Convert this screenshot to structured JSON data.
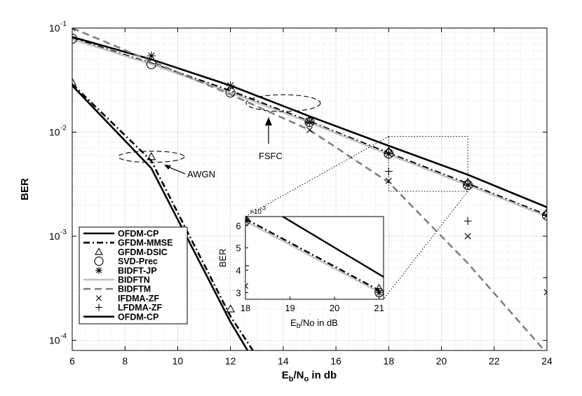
{
  "chart_data": [
    {
      "id": "main",
      "type": "line",
      "xlabel": "E_b/N_o in db",
      "ylabel": "BER",
      "xscale": "linear",
      "yscale": "log",
      "xlim": [
        6,
        24
      ],
      "ylim": [
        8e-05,
        0.1
      ],
      "grid": true,
      "minor_grid": true,
      "legend_position": "bottom-left",
      "x_ticks": [
        "6",
        "8",
        "10",
        "12",
        "14",
        "16",
        "18",
        "20",
        "22",
        "24"
      ],
      "y_ticks": [
        {
          "value": 0.1,
          "base": "10",
          "exp": "-1"
        },
        {
          "value": 0.01,
          "base": "10",
          "exp": "-2"
        },
        {
          "value": 0.001,
          "base": "10",
          "exp": "-3"
        },
        {
          "value": 0.0001,
          "base": "10",
          "exp": "-4"
        }
      ],
      "legend": [
        {
          "label": "OFDM-CP",
          "line": "solid",
          "marker": "none",
          "color": "#000000"
        },
        {
          "label": "GFDM-MMSE",
          "line": "dashdot",
          "marker": "none",
          "color": "#000000"
        },
        {
          "label": "GFDM-DSIC",
          "line": "none",
          "marker": "triangle",
          "color": "#000000"
        },
        {
          "label": "SVD-Prec",
          "line": "none",
          "marker": "circle",
          "color": "#000000"
        },
        {
          "label": "BIDFT-JP",
          "line": "none",
          "marker": "asterisk",
          "color": "#000000"
        },
        {
          "label": "BIDFTN",
          "line": "solid",
          "marker": "none",
          "color": "#c0c0c0"
        },
        {
          "label": "BIDFTM",
          "line": "dashed",
          "marker": "none",
          "color": "#808080"
        },
        {
          "label": "IFDMA-ZF",
          "line": "none",
          "marker": "x",
          "color": "#000000"
        },
        {
          "label": "LFDMA-ZF",
          "line": "none",
          "marker": "plus",
          "color": "#000000"
        },
        {
          "label": "OFDM-CP",
          "line": "solid",
          "marker": "none",
          "color": "#000000"
        }
      ],
      "series": [
        {
          "label": "OFDM-CP",
          "style": "solid",
          "color": "#000000",
          "width": 2.6,
          "x": [
            6,
            9,
            12,
            12.65
          ],
          "y": [
            0.028,
            0.0045,
            0.00015,
            8e-05
          ]
        },
        {
          "label": "GFDM-MMSE",
          "style": "dashdot",
          "color": "#000000",
          "width": 2.6,
          "x": [
            6,
            9,
            12,
            12.85
          ],
          "y": [
            0.029,
            0.0053,
            0.00017,
            8e-05
          ]
        },
        {
          "label": "OFDM-CP",
          "style": "solid",
          "color": "#000000",
          "width": 2.6,
          "x": [
            6,
            9,
            12,
            15,
            18,
            21,
            24
          ],
          "y": [
            0.082,
            0.05,
            0.028,
            0.0142,
            0.0074,
            0.0039,
            0.0019
          ]
        },
        {
          "label": "GFDM-MMSE",
          "style": "dashdot",
          "color": "#000000",
          "width": 2.2,
          "x": [
            6,
            9,
            12,
            15,
            18,
            21,
            24
          ],
          "y": [
            0.08,
            0.046,
            0.025,
            0.0127,
            0.0063,
            0.0032,
            0.0016
          ]
        },
        {
          "label": "BIDFTN",
          "style": "solid",
          "color": "#c0c0c0",
          "width": 2.6,
          "x": [
            6,
            9,
            12,
            15,
            18,
            21,
            24
          ],
          "y": [
            0.078,
            0.045,
            0.024,
            0.0124,
            0.0061,
            0.0031,
            0.00155
          ]
        },
        {
          "label": "BIDFTM",
          "style": "dashed",
          "color": "#808080",
          "width": 2.6,
          "x": [
            6,
            9,
            12,
            15,
            18,
            21,
            24
          ],
          "y": [
            0.1,
            0.048,
            0.023,
            0.0105,
            0.0033,
            0.00055,
            7.5e-05
          ]
        }
      ],
      "markers": [
        {
          "label": "GFDM-DSIC",
          "marker": "triangle",
          "x": [
            6,
            9,
            12,
            15,
            18,
            21,
            24
          ],
          "y": [
            0.03,
            0.0058,
            0.0002,
            0.013,
            0.0066,
            0.0033,
            0.0017
          ]
        },
        {
          "label": "SVD-Prec",
          "marker": "circle",
          "x": [
            6,
            9,
            12,
            15,
            18,
            21,
            24
          ],
          "y": [
            0.079,
            0.045,
            0.024,
            0.0125,
            0.0062,
            0.0031,
            0.00158
          ]
        },
        {
          "label": "BIDFT-JP",
          "marker": "asterisk",
          "x": [
            6,
            9,
            12,
            15,
            18,
            21,
            24
          ],
          "y": [
            0.1,
            0.054,
            0.028,
            0.0125,
            0.0062,
            0.0031,
            0.00158
          ]
        },
        {
          "label": "IFDMA-ZF",
          "marker": "x",
          "x": [
            15,
            18,
            21,
            24
          ],
          "y": [
            0.0105,
            0.0034,
            0.001,
            0.00029
          ]
        },
        {
          "label": "LFDMA-ZF",
          "marker": "plus",
          "x": [
            18,
            21,
            24
          ],
          "y": [
            0.0042,
            0.0014,
            0.0004
          ]
        }
      ],
      "annotations": [
        {
          "text": "AWGN",
          "ellipse_center": [
            9,
            0.0058
          ]
        },
        {
          "text": "FSFC",
          "ellipse_center": [
            14,
            0.019
          ]
        }
      ],
      "zoom_box": {
        "xlim": [
          18,
          21
        ],
        "ylim": [
          0.0027,
          0.0091
        ]
      }
    },
    {
      "id": "inset",
      "type": "line",
      "xlabel": "E_b/No in dB",
      "ylabel": "BER",
      "xscale": "linear",
      "yscale": "linear",
      "xlim": [
        18,
        21.1
      ],
      "ylim": [
        0.0027,
        0.0064
      ],
      "exponent_label": "×10",
      "exponent_power": "-3",
      "x_ticks": [
        "18",
        "19",
        "20",
        "21"
      ],
      "y_ticks": [
        "6",
        "5",
        "4",
        "3"
      ],
      "series": [
        {
          "label": "OFDM-CP",
          "style": "solid",
          "color": "#000000",
          "width": 2.4,
          "x": [
            18,
            21.1
          ],
          "y": [
            0.0074,
            0.0037
          ]
        },
        {
          "label": "GFDM-MMSE",
          "style": "dashdot",
          "color": "#000000",
          "width": 2.4,
          "x": [
            18,
            21
          ],
          "y": [
            0.0063,
            0.0031
          ]
        },
        {
          "label": "BIDFTN",
          "style": "solid",
          "color": "#c0c0c0",
          "width": 2.4,
          "x": [
            18,
            21
          ],
          "y": [
            0.0062,
            0.00302
          ]
        }
      ],
      "markers": [
        {
          "label": "GFDM-DSIC",
          "marker": "triangle",
          "x": [
            18,
            21
          ],
          "y": [
            0.0063,
            0.0032
          ]
        },
        {
          "label": "SVD-Prec",
          "marker": "circle",
          "x": [
            18,
            21
          ],
          "y": [
            0.0062,
            0.003
          ]
        },
        {
          "label": "BIDFT-JP",
          "marker": "asterisk",
          "x": [
            18,
            21
          ],
          "y": [
            0.0062,
            0.003
          ]
        },
        {
          "label": "IFDMA-ZF",
          "marker": "x",
          "x": [
            18
          ],
          "y": [
            0.0033
          ]
        },
        {
          "label": "LFDMA-ZF",
          "marker": "plus",
          "x": [
            18
          ],
          "y": [
            0.0042
          ]
        }
      ]
    }
  ]
}
